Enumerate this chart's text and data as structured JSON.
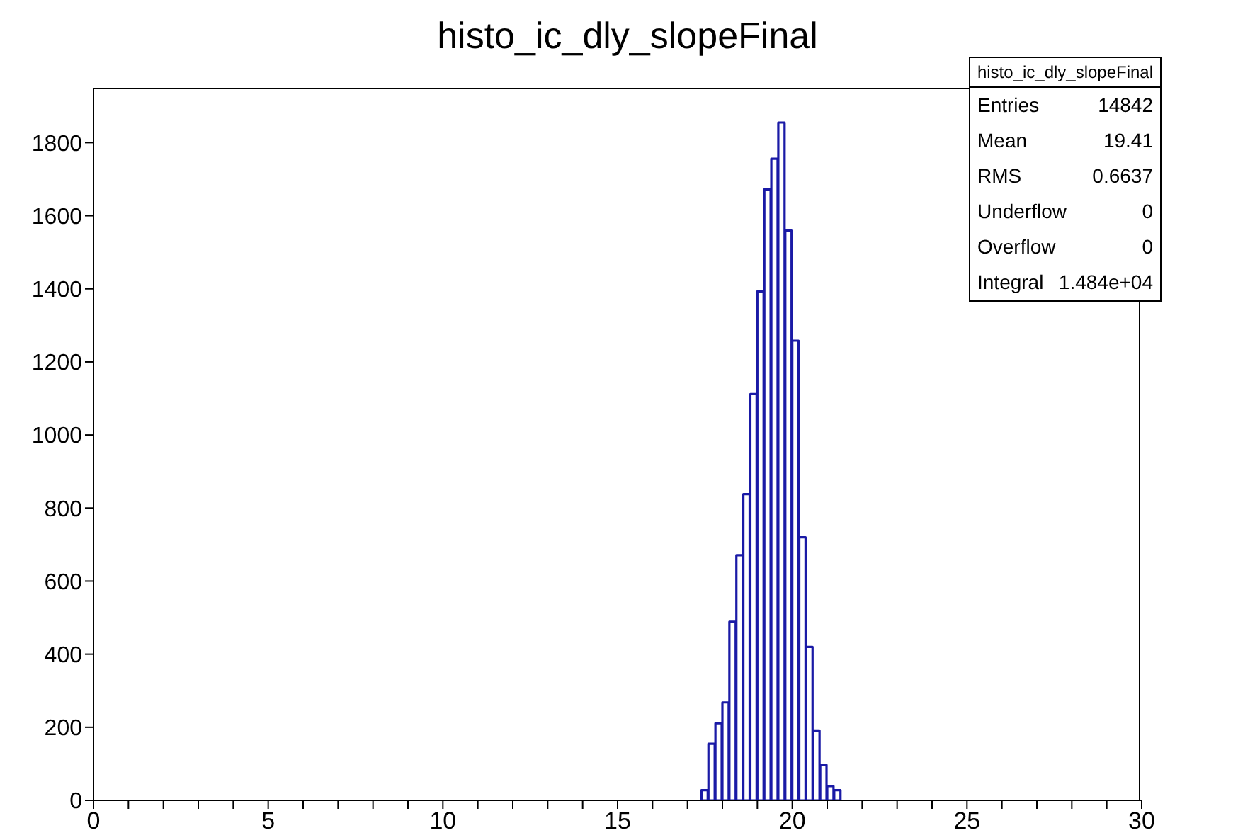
{
  "chart_data": {
    "type": "histogram",
    "title": "histo_ic_dly_slopeFinal",
    "bins": [
      17.4,
      17.6,
      17.8,
      18.0,
      18.2,
      18.4,
      18.6,
      18.8,
      19.0,
      19.2,
      19.4,
      19.6,
      19.8,
      20.0,
      20.2,
      20.4,
      20.6,
      20.8,
      21.0,
      21.2,
      21.4
    ],
    "values": [
      28,
      155,
      211,
      268,
      489,
      671,
      838,
      1112,
      1393,
      1672,
      1756,
      1855,
      1559,
      1258,
      720,
      420,
      191,
      97,
      39,
      28
    ],
    "color": "#1a1aa6",
    "xlim": [
      0,
      30
    ],
    "xticks": [
      0,
      {
        "value": 1,
        "label": null
      },
      {
        "value": 2,
        "label": null
      },
      {
        "value": 3,
        "label": null
      },
      {
        "value": 4,
        "label": null
      },
      5,
      {
        "value": 6,
        "label": null
      },
      {
        "value": 7,
        "label": null
      },
      {
        "value": 8,
        "label": null
      },
      {
        "value": 9,
        "label": null
      },
      10,
      {
        "value": 11,
        "label": null
      },
      {
        "value": 12,
        "label": null
      },
      {
        "value": 13,
        "label": null
      },
      {
        "value": 14,
        "label": null
      },
      15,
      {
        "value": 16,
        "label": null
      },
      {
        "value": 17,
        "label": null
      },
      {
        "value": 18,
        "label": null
      },
      {
        "value": 19,
        "label": null
      },
      20,
      {
        "value": 21,
        "label": null
      },
      {
        "value": 22,
        "label": null
      },
      {
        "value": 23,
        "label": null
      },
      {
        "value": 24,
        "label": null
      },
      25,
      {
        "value": 26,
        "label": null
      },
      {
        "value": 27,
        "label": null
      },
      {
        "value": 28,
        "label": null
      },
      {
        "value": 29,
        "label": null
      },
      30
    ],
    "ylim": [
      0,
      1950
    ],
    "yticks": [
      0,
      200,
      400,
      600,
      800,
      1000,
      1200,
      1400,
      1600,
      1800
    ],
    "legend_title": "histo_ic_dly_slopeFinal",
    "annotations": [
      "Entries 14842",
      "Mean 19.41",
      "RMS 0.6637",
      "Underflow 0",
      "Overflow 0",
      "Integral 1.484e+04"
    ],
    "grid": false
  }
}
